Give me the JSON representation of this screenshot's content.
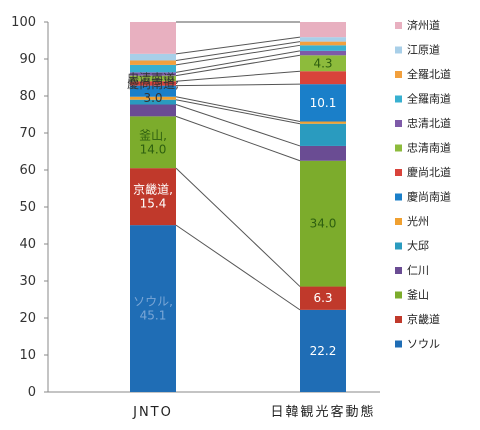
{
  "chart_data": {
    "type": "bar",
    "stacked": true,
    "categories": [
      "JNTO",
      "日韓観光客動態"
    ],
    "ylim": [
      0,
      100
    ],
    "yticks": [
      0,
      10,
      20,
      30,
      40,
      50,
      60,
      70,
      80,
      90,
      100
    ],
    "legend_position": "right",
    "connector_lines": true,
    "series": [
      {
        "name": "ソウル",
        "color": "#1f6db5",
        "values": [
          45.1,
          22.2
        ],
        "labels": [
          "ソウル,\n45.1",
          "22.2"
        ]
      },
      {
        "name": "京畿道",
        "color": "#c0392b",
        "values": [
          15.4,
          6.3
        ],
        "labels": [
          "京畿道,\n15.4",
          "6.3"
        ]
      },
      {
        "name": "釜山",
        "color": "#7cac2c",
        "values": [
          14.0,
          34.0
        ],
        "labels": [
          "釜山,\n14.0",
          "34.0"
        ]
      },
      {
        "name": "仁川",
        "color": "#6a4c93",
        "values": [
          3.2,
          4.0
        ],
        "labels": [
          "",
          ""
        ]
      },
      {
        "name": "大邱",
        "color": "#2a9bbf",
        "values": [
          1.3,
          6.0
        ],
        "labels": [
          "",
          ""
        ]
      },
      {
        "name": "光州",
        "color": "#f0a030",
        "values": [
          0.8,
          0.6
        ],
        "labels": [
          "",
          ""
        ]
      },
      {
        "name": "慶尚南道",
        "color": "#1a7fc9",
        "values": [
          3.0,
          10.1
        ],
        "labels": [
          "慶尚南道,\n3.0",
          "10.1"
        ]
      },
      {
        "name": "慶尚北道",
        "color": "#d9433b",
        "values": [
          1.2,
          3.5
        ],
        "labels": [
          "",
          ""
        ]
      },
      {
        "name": "忠清南道",
        "color": "#8dbb3c",
        "values": [
          1.5,
          4.3
        ],
        "labels": [
          "忠清南道,",
          "4.3"
        ]
      },
      {
        "name": "忠清北道",
        "color": "#7e5aa8",
        "values": [
          0.9,
          1.2
        ],
        "labels": [
          "",
          ""
        ]
      },
      {
        "name": "全羅南道",
        "color": "#38b0d0",
        "values": [
          2.0,
          1.5
        ],
        "labels": [
          "",
          ""
        ]
      },
      {
        "name": "全羅北道",
        "color": "#f2a03d",
        "values": [
          1.2,
          1.0
        ],
        "labels": [
          "",
          ""
        ]
      },
      {
        "name": "江原道",
        "color": "#a8cfe8",
        "values": [
          1.8,
          1.2
        ],
        "labels": [
          "",
          ""
        ]
      },
      {
        "name": "済州道",
        "color": "#e8b0c0",
        "values": [
          8.6,
          4.1
        ],
        "labels": [
          "",
          ""
        ]
      }
    ]
  }
}
